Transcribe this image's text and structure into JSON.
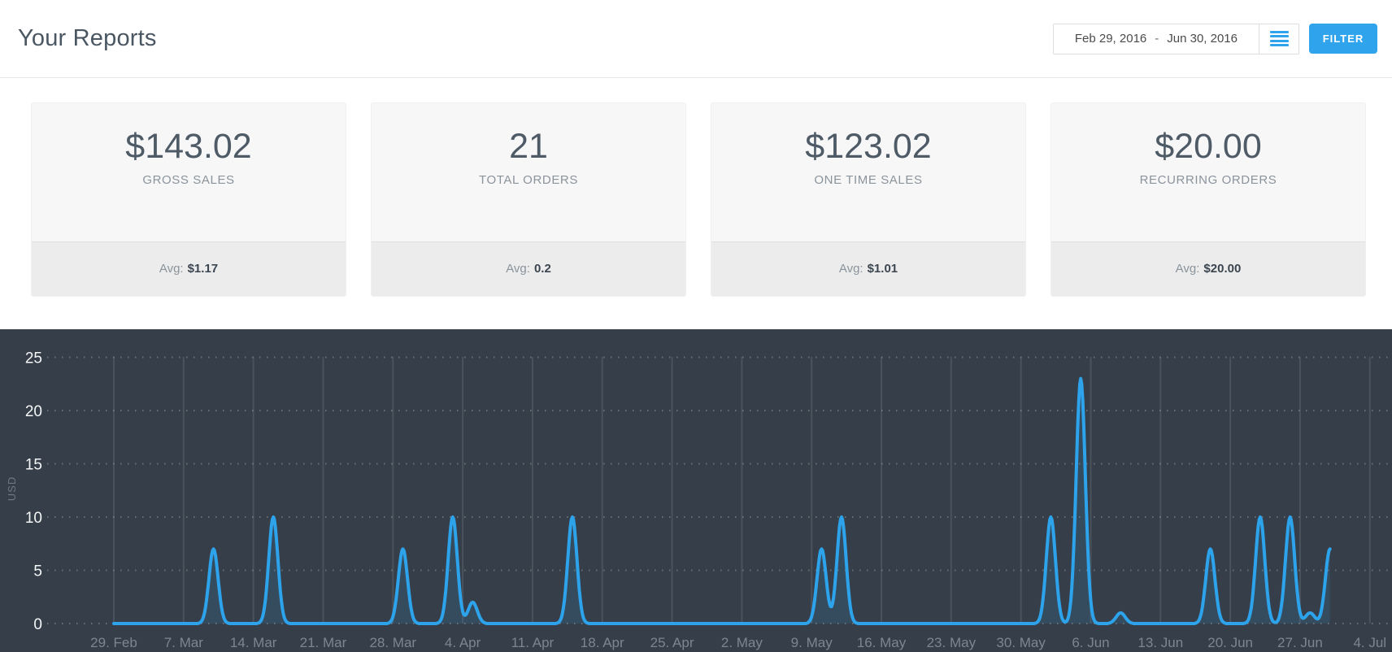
{
  "header": {
    "title": "Your Reports",
    "date_range": {
      "from": "Feb 29, 2016",
      "separator": "-",
      "to": "Jun 30, 2016"
    },
    "menu_icon": "hamburger-icon",
    "filter_label": "FILTER",
    "accent_color": "#2fa4ec"
  },
  "cards": [
    {
      "value": "$143.02",
      "label": "GROSS SALES",
      "avg_label": "Avg:",
      "avg_value": "$1.17"
    },
    {
      "value": "21",
      "label": "TOTAL ORDERS",
      "avg_label": "Avg:",
      "avg_value": "0.2"
    },
    {
      "value": "$123.02",
      "label": "ONE TIME SALES",
      "avg_label": "Avg:",
      "avg_value": "$1.01"
    },
    {
      "value": "$20.00",
      "label": "RECURRING ORDERS",
      "avg_label": "Avg:",
      "avg_value": "$20.00"
    }
  ],
  "chart_data": {
    "type": "area",
    "title": "",
    "xlabel": "",
    "ylabel": "USD",
    "ylim": [
      0,
      25
    ],
    "y_ticks": [
      0,
      5,
      10,
      15,
      20,
      25
    ],
    "x_range_days": [
      0,
      126
    ],
    "series_span_days": [
      0,
      122
    ],
    "background": "#363f49",
    "grid": {
      "horizontal": "dotted",
      "vertical": "solid",
      "legend": "none"
    },
    "x_ticks": [
      {
        "label": "29. Feb",
        "day": 0
      },
      {
        "label": "7. Mar",
        "day": 7
      },
      {
        "label": "14. Mar",
        "day": 14
      },
      {
        "label": "21. Mar",
        "day": 21
      },
      {
        "label": "28. Mar",
        "day": 28
      },
      {
        "label": "4. Apr",
        "day": 35
      },
      {
        "label": "11. Apr",
        "day": 42
      },
      {
        "label": "18. Apr",
        "day": 49
      },
      {
        "label": "25. Apr",
        "day": 56
      },
      {
        "label": "2. May",
        "day": 63
      },
      {
        "label": "9. May",
        "day": 70
      },
      {
        "label": "16. May",
        "day": 77
      },
      {
        "label": "23. May",
        "day": 84
      },
      {
        "label": "30. May",
        "day": 91
      },
      {
        "label": "6. Jun",
        "day": 98
      },
      {
        "label": "13. Jun",
        "day": 105
      },
      {
        "label": "20. Jun",
        "day": 112
      },
      {
        "label": "27. Jun",
        "day": 119
      },
      {
        "label": "4. Jul",
        "day": 126
      }
    ],
    "series": [
      {
        "name": "USD",
        "color": "#2da3ec",
        "fill": "rgba(45,163,236,0.13)",
        "baseline": 0,
        "points": [
          {
            "date": "Mar 10",
            "day": 10,
            "value": 7
          },
          {
            "date": "Mar 16",
            "day": 16,
            "value": 10
          },
          {
            "date": "Mar 29",
            "day": 29,
            "value": 7
          },
          {
            "date": "Apr 3",
            "day": 34,
            "value": 10
          },
          {
            "date": "Apr 5",
            "day": 36,
            "value": 2
          },
          {
            "date": "Apr 15",
            "day": 46,
            "value": 10
          },
          {
            "date": "May 10",
            "day": 71,
            "value": 7
          },
          {
            "date": "May 12",
            "day": 73,
            "value": 10
          },
          {
            "date": "Jun 2",
            "day": 94,
            "value": 10
          },
          {
            "date": "Jun 5",
            "day": 97,
            "value": 23
          },
          {
            "date": "Jun 9",
            "day": 101,
            "value": 1
          },
          {
            "date": "Jun 18",
            "day": 110,
            "value": 7
          },
          {
            "date": "Jun 23",
            "day": 115,
            "value": 10
          },
          {
            "date": "Jun 26",
            "day": 118,
            "value": 10
          },
          {
            "date": "Jun 28",
            "day": 120,
            "value": 1
          },
          {
            "date": "Jun 30",
            "day": 122,
            "value": 7
          }
        ]
      }
    ]
  }
}
